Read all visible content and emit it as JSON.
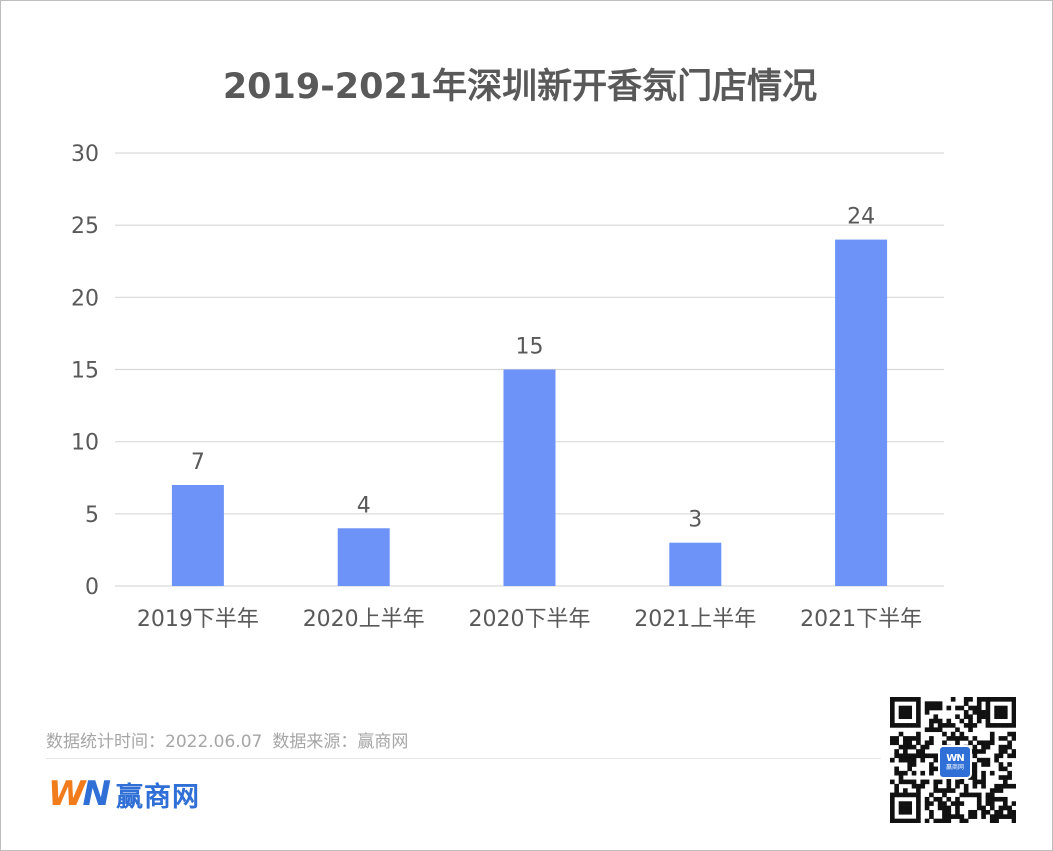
{
  "chart_data": {
    "type": "bar",
    "title": "2019-2021年深圳新开香氛门店情况",
    "categories": [
      "2019下半年",
      "2020上半年",
      "2020下半年",
      "2021上半年",
      "2021下半年"
    ],
    "values": [
      7,
      4,
      15,
      3,
      24
    ],
    "data_labels": [
      "7",
      "4",
      "15",
      "3",
      "24"
    ],
    "ylim": [
      0,
      30
    ],
    "yticks": [
      0,
      5,
      10,
      15,
      20,
      25,
      30
    ],
    "xlabel": "",
    "ylabel": "",
    "grid": true,
    "legend": "none",
    "bar_color": "#6d93f8",
    "grid_color": "#d9d9d9"
  },
  "footer": {
    "stat_time_label": "数据统计时间：2022.06.07",
    "source_label": "数据来源：赢商网"
  },
  "brand": {
    "logo_w": "W",
    "logo_n": "N",
    "name": "赢商网",
    "logo_color_orange": "#f07c1c",
    "logo_color_blue": "#2f6fd6"
  },
  "qr": {
    "icon": "qr-code-icon",
    "badge_logo": "WN",
    "badge_name": "赢商网"
  }
}
